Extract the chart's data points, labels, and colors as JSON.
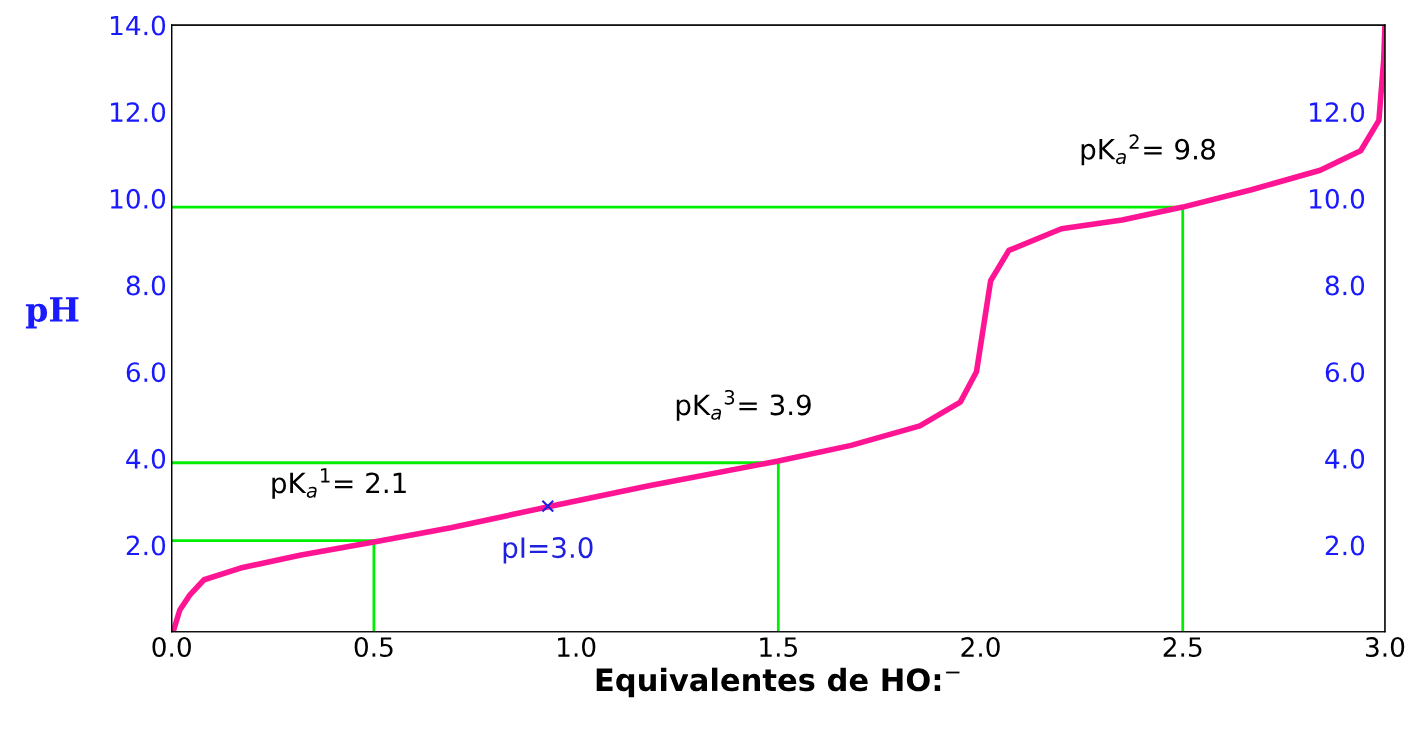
{
  "chart_data": {
    "type": "line",
    "xlabel": "Equivalentes de HO:$^{−}$",
    "ylabel": "pH",
    "xlim": [
      0,
      3
    ],
    "ylim": [
      0,
      14
    ],
    "y2lim": [
      0,
      14
    ],
    "xticks": [
      {
        "value": 0,
        "label": "0.0"
      },
      {
        "value": 0.5,
        "label": "0.5"
      },
      {
        "value": 1,
        "label": "1.0"
      },
      {
        "value": 1.5,
        "label": "1.5"
      },
      {
        "value": 2,
        "label": "2.0"
      },
      {
        "value": 2.5,
        "label": "2.5"
      },
      {
        "value": 3,
        "label": "3.0"
      }
    ],
    "yticks": [
      {
        "value": 2,
        "label": "2.0"
      },
      {
        "value": 4,
        "label": "4.0"
      },
      {
        "value": 6,
        "label": "6.0"
      },
      {
        "value": 8,
        "label": "8.0"
      },
      {
        "value": 10,
        "label": "10.0"
      },
      {
        "value": 12,
        "label": "12.0"
      },
      {
        "value": 14,
        "label": "14.0"
      }
    ],
    "y2ticks": [
      {
        "value": 2,
        "label": "2.0"
      },
      {
        "value": 4,
        "label": "4.0"
      },
      {
        "value": 6,
        "label": "6.0"
      },
      {
        "value": 8,
        "label": "8.0"
      },
      {
        "value": 10,
        "label": "10.0"
      },
      {
        "value": 12,
        "label": "12.0"
      }
    ],
    "series": [
      {
        "color": "#00ee00",
        "x": [
          0,
          0.5,
          0.5
        ],
        "values": [
          2.1,
          2.1,
          0
        ]
      },
      {
        "color": "#00ee00",
        "x": [
          0,
          1.5,
          1.5
        ],
        "values": [
          3.9,
          3.9,
          0
        ]
      },
      {
        "color": "#00ee00",
        "x": [
          0,
          2.5,
          2.5
        ],
        "values": [
          9.8,
          9.8,
          0
        ]
      },
      {
        "color": "#ff1493",
        "x": [
          0.005,
          0.02,
          0.045,
          0.08,
          0.17,
          0.32,
          0.5,
          0.69,
          0.94,
          1.18,
          1.5,
          1.68,
          1.85,
          1.95,
          1.99,
          2.01,
          2.025,
          2.07,
          2.2,
          2.35,
          2.5,
          2.67,
          2.84,
          2.94,
          2.985,
          2.997,
          3.0
        ],
        "values": [
          0.04,
          0.5,
          0.85,
          1.2,
          1.47,
          1.77,
          2.07,
          2.4,
          2.9,
          3.37,
          3.94,
          4.3,
          4.75,
          5.3,
          6.0,
          7.2,
          8.1,
          8.8,
          9.3,
          9.5,
          9.8,
          10.2,
          10.65,
          11.1,
          11.8,
          13.2,
          14.0
        ]
      },
      {
        "type": "scatter",
        "name": "pI=3.0",
        "color": "#2020e0",
        "marker": "cross",
        "x": [
          0.93
        ],
        "values": [
          2.9
        ]
      }
    ],
    "annotations": [
      {
        "text": "pK$_{a}$$^{1}$= 2.1",
        "x": 0.5,
        "y": 2.1
      },
      {
        "text": "pK$_{a}$$^{3}$= 3.9",
        "x": 1.5,
        "y": 3.9
      },
      {
        "text": "pK$_{a}$$^{2}$= 9.8",
        "x": 2.5,
        "y": 9.8
      }
    ],
    "line_style": "solid"
  }
}
